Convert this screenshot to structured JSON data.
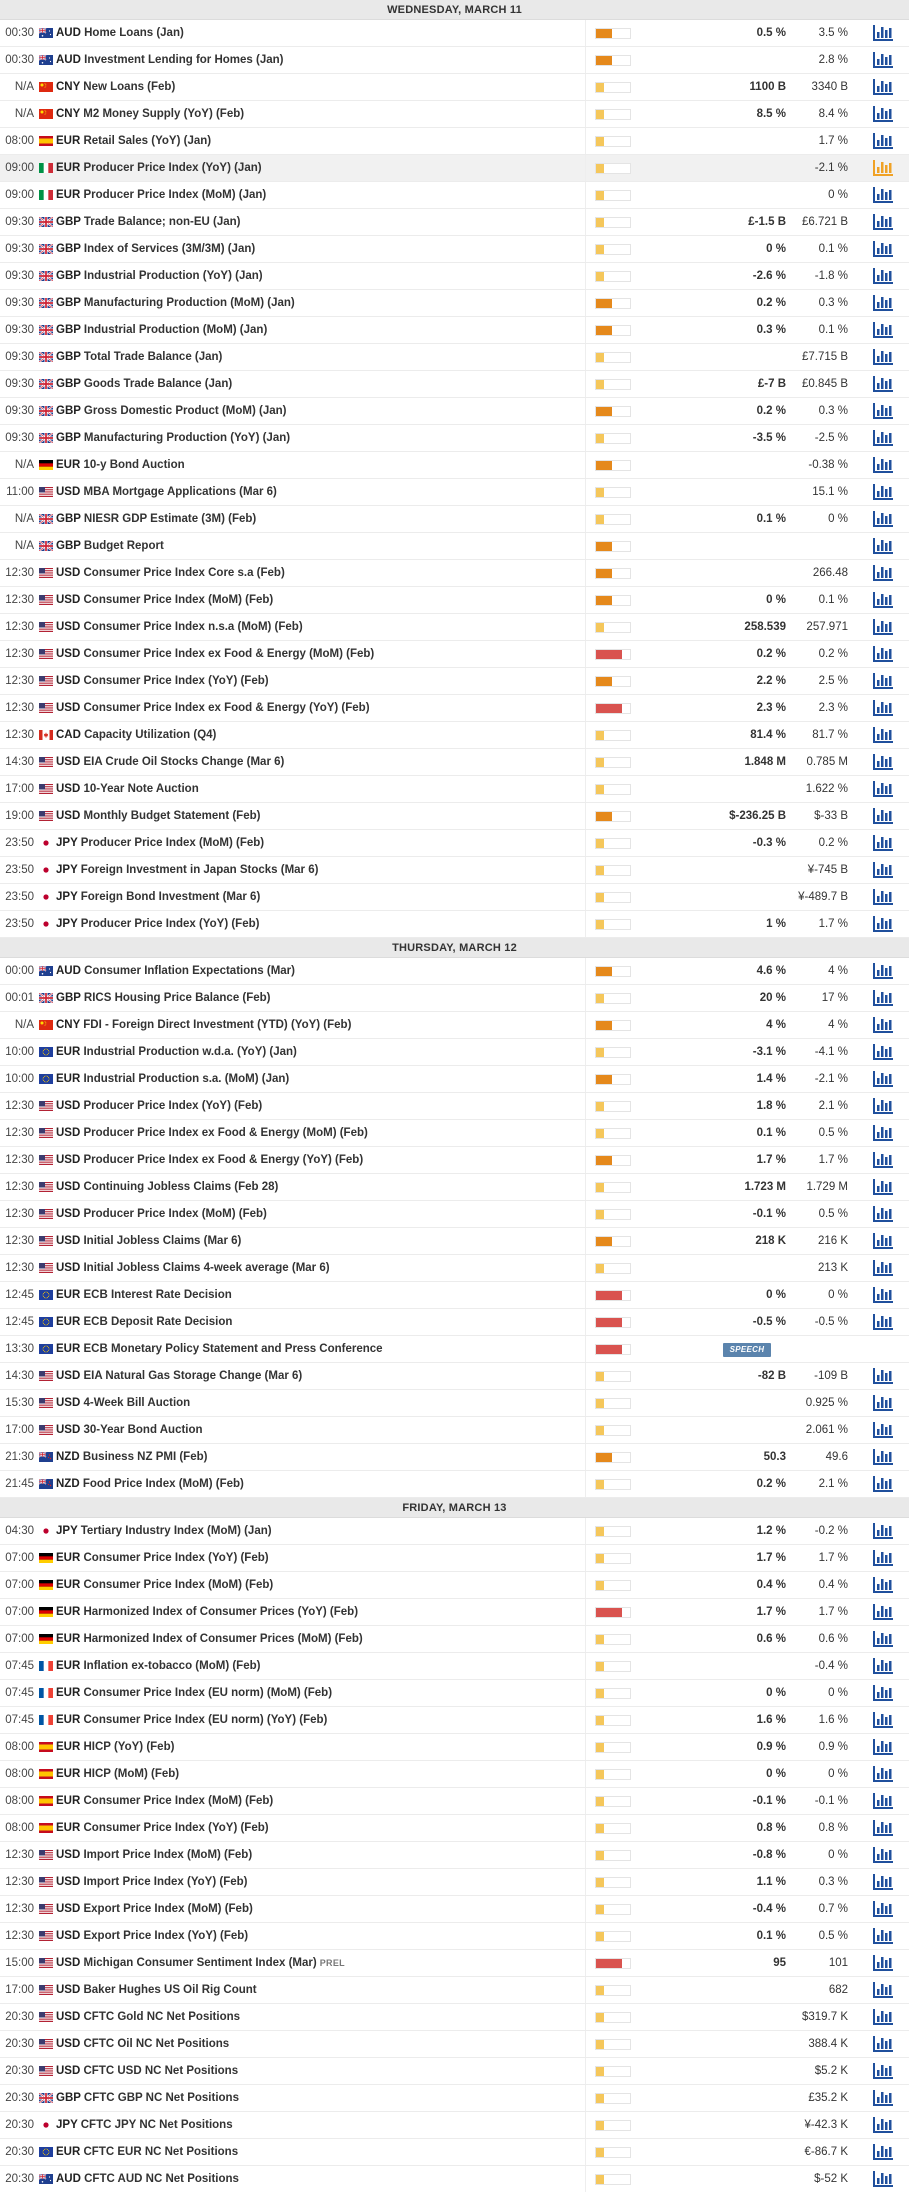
{
  "colors": {
    "importance_high": "#d9534f",
    "importance_medium": "#e5891c",
    "importance_low": "#f5c75b",
    "chart_icon": "#1f4f9c",
    "chart_icon_active": "#f0a226",
    "speech_badge": "#5b84ad"
  },
  "days": [
    {
      "title": "WEDNESDAY, MARCH 11",
      "events": [
        {
          "time": "00:30",
          "flag": "au",
          "currency": "AUD",
          "name": "Home Loans (Jan)",
          "importance": "medium",
          "actual": "0.5 %",
          "consensus": "3.5 %"
        },
        {
          "time": "00:30",
          "flag": "au",
          "currency": "AUD",
          "name": "Investment Lending for Homes (Jan)",
          "importance": "medium",
          "actual": "",
          "consensus": "2.8 %"
        },
        {
          "time": "N/A",
          "flag": "cn",
          "currency": "CNY",
          "name": "New Loans (Feb)",
          "importance": "low",
          "actual": "1100 B",
          "consensus": "3340 B"
        },
        {
          "time": "N/A",
          "flag": "cn",
          "currency": "CNY",
          "name": "M2 Money Supply (YoY) (Feb)",
          "importance": "low",
          "actual": "8.5 %",
          "consensus": "8.4 %"
        },
        {
          "time": "08:00",
          "flag": "es",
          "currency": "EUR",
          "name": "Retail Sales (YoY) (Jan)",
          "importance": "low",
          "actual": "",
          "consensus": "1.7 %"
        },
        {
          "time": "09:00",
          "flag": "it",
          "currency": "EUR",
          "name": "Producer Price Index (YoY) (Jan)",
          "importance": "low",
          "actual": "",
          "consensus": "-2.1 %",
          "highlight": true
        },
        {
          "time": "09:00",
          "flag": "it",
          "currency": "EUR",
          "name": "Producer Price Index (MoM) (Jan)",
          "importance": "low",
          "actual": "",
          "consensus": "0 %"
        },
        {
          "time": "09:30",
          "flag": "gb",
          "currency": "GBP",
          "name": "Trade Balance; non-EU (Jan)",
          "importance": "low",
          "actual": "£-1.5 B",
          "consensus": "£6.721 B"
        },
        {
          "time": "09:30",
          "flag": "gb",
          "currency": "GBP",
          "name": "Index of Services (3M/3M) (Jan)",
          "importance": "low",
          "actual": "0 %",
          "consensus": "0.1 %"
        },
        {
          "time": "09:30",
          "flag": "gb",
          "currency": "GBP",
          "name": "Industrial Production (YoY) (Jan)",
          "importance": "low",
          "actual": "-2.6 %",
          "consensus": "-1.8 %"
        },
        {
          "time": "09:30",
          "flag": "gb",
          "currency": "GBP",
          "name": "Manufacturing Production (MoM) (Jan)",
          "importance": "medium",
          "actual": "0.2 %",
          "consensus": "0.3 %"
        },
        {
          "time": "09:30",
          "flag": "gb",
          "currency": "GBP",
          "name": "Industrial Production (MoM) (Jan)",
          "importance": "medium",
          "actual": "0.3 %",
          "consensus": "0.1 %"
        },
        {
          "time": "09:30",
          "flag": "gb",
          "currency": "GBP",
          "name": "Total Trade Balance (Jan)",
          "importance": "low",
          "actual": "",
          "consensus": "£7.715 B"
        },
        {
          "time": "09:30",
          "flag": "gb",
          "currency": "GBP",
          "name": "Goods Trade Balance (Jan)",
          "importance": "low",
          "actual": "£-7 B",
          "consensus": "£0.845 B"
        },
        {
          "time": "09:30",
          "flag": "gb",
          "currency": "GBP",
          "name": "Gross Domestic Product (MoM) (Jan)",
          "importance": "medium",
          "actual": "0.2 %",
          "consensus": "0.3 %"
        },
        {
          "time": "09:30",
          "flag": "gb",
          "currency": "GBP",
          "name": "Manufacturing Production (YoY) (Jan)",
          "importance": "low",
          "actual": "-3.5 %",
          "consensus": "-2.5 %"
        },
        {
          "time": "N/A",
          "flag": "de",
          "currency": "EUR",
          "name": "10-y Bond Auction",
          "importance": "medium",
          "actual": "",
          "consensus": "-0.38 %"
        },
        {
          "time": "11:00",
          "flag": "us",
          "currency": "USD",
          "name": "MBA Mortgage Applications (Mar 6)",
          "importance": "low",
          "actual": "",
          "consensus": "15.1 %"
        },
        {
          "time": "N/A",
          "flag": "gb",
          "currency": "GBP",
          "name": "NIESR GDP Estimate (3M) (Feb)",
          "importance": "low",
          "actual": "0.1 %",
          "consensus": "0 %"
        },
        {
          "time": "N/A",
          "flag": "gb",
          "currency": "GBP",
          "name": "Budget Report",
          "importance": "medium",
          "actual": "",
          "consensus": ""
        },
        {
          "time": "12:30",
          "flag": "us",
          "currency": "USD",
          "name": "Consumer Price Index Core s.a (Feb)",
          "importance": "medium",
          "actual": "",
          "consensus": "266.48"
        },
        {
          "time": "12:30",
          "flag": "us",
          "currency": "USD",
          "name": "Consumer Price Index (MoM) (Feb)",
          "importance": "medium",
          "actual": "0 %",
          "consensus": "0.1 %"
        },
        {
          "time": "12:30",
          "flag": "us",
          "currency": "USD",
          "name": "Consumer Price Index n.s.a (MoM) (Feb)",
          "importance": "low",
          "actual": "258.539",
          "consensus": "257.971"
        },
        {
          "time": "12:30",
          "flag": "us",
          "currency": "USD",
          "name": "Consumer Price Index ex Food & Energy (MoM) (Feb)",
          "importance": "high",
          "actual": "0.2 %",
          "consensus": "0.2 %"
        },
        {
          "time": "12:30",
          "flag": "us",
          "currency": "USD",
          "name": "Consumer Price Index (YoY) (Feb)",
          "importance": "medium",
          "actual": "2.2 %",
          "consensus": "2.5 %"
        },
        {
          "time": "12:30",
          "flag": "us",
          "currency": "USD",
          "name": "Consumer Price Index ex Food & Energy (YoY) (Feb)",
          "importance": "high",
          "actual": "2.3 %",
          "consensus": "2.3 %"
        },
        {
          "time": "12:30",
          "flag": "ca",
          "currency": "CAD",
          "name": "Capacity Utilization (Q4)",
          "importance": "low",
          "actual": "81.4 %",
          "consensus": "81.7 %"
        },
        {
          "time": "14:30",
          "flag": "us",
          "currency": "USD",
          "name": "EIA Crude Oil Stocks Change (Mar 6)",
          "importance": "low",
          "actual": "1.848 M",
          "consensus": "0.785 M"
        },
        {
          "time": "17:00",
          "flag": "us",
          "currency": "USD",
          "name": "10-Year Note Auction",
          "importance": "low",
          "actual": "",
          "consensus": "1.622 %"
        },
        {
          "time": "19:00",
          "flag": "us",
          "currency": "USD",
          "name": "Monthly Budget Statement (Feb)",
          "importance": "medium",
          "actual": "$-236.25 B",
          "consensus": "$-33 B"
        },
        {
          "time": "23:50",
          "flag": "jp",
          "currency": "JPY",
          "name": "Producer Price Index (MoM) (Feb)",
          "importance": "low",
          "actual": "-0.3 %",
          "consensus": "0.2 %"
        },
        {
          "time": "23:50",
          "flag": "jp",
          "currency": "JPY",
          "name": "Foreign Investment in Japan Stocks (Mar 6)",
          "importance": "low",
          "actual": "",
          "consensus": "¥-745 B"
        },
        {
          "time": "23:50",
          "flag": "jp",
          "currency": "JPY",
          "name": "Foreign Bond Investment (Mar 6)",
          "importance": "low",
          "actual": "",
          "consensus": "¥-489.7 B"
        },
        {
          "time": "23:50",
          "flag": "jp",
          "currency": "JPY",
          "name": "Producer Price Index (YoY) (Feb)",
          "importance": "low",
          "actual": "1 %",
          "consensus": "1.7 %"
        }
      ]
    },
    {
      "title": "THURSDAY, MARCH 12",
      "events": [
        {
          "time": "00:00",
          "flag": "au",
          "currency": "AUD",
          "name": "Consumer Inflation Expectations (Mar)",
          "importance": "medium",
          "actual": "4.6 %",
          "consensus": "4 %"
        },
        {
          "time": "00:01",
          "flag": "gb",
          "currency": "GBP",
          "name": "RICS Housing Price Balance (Feb)",
          "importance": "low",
          "actual": "20 %",
          "consensus": "17 %"
        },
        {
          "time": "N/A",
          "flag": "cn",
          "currency": "CNY",
          "name": "FDI - Foreign Direct Investment (YTD) (YoY) (Feb)",
          "importance": "medium",
          "actual": "4 %",
          "consensus": "4 %"
        },
        {
          "time": "10:00",
          "flag": "eu",
          "currency": "EUR",
          "name": "Industrial Production w.d.a. (YoY) (Jan)",
          "importance": "low",
          "actual": "-3.1 %",
          "consensus": "-4.1 %"
        },
        {
          "time": "10:00",
          "flag": "eu",
          "currency": "EUR",
          "name": "Industrial Production s.a. (MoM) (Jan)",
          "importance": "medium",
          "actual": "1.4 %",
          "consensus": "-2.1 %"
        },
        {
          "time": "12:30",
          "flag": "us",
          "currency": "USD",
          "name": "Producer Price Index (YoY) (Feb)",
          "importance": "low",
          "actual": "1.8 %",
          "consensus": "2.1 %"
        },
        {
          "time": "12:30",
          "flag": "us",
          "currency": "USD",
          "name": "Producer Price Index ex Food & Energy (MoM) (Feb)",
          "importance": "low",
          "actual": "0.1 %",
          "consensus": "0.5 %"
        },
        {
          "time": "12:30",
          "flag": "us",
          "currency": "USD",
          "name": "Producer Price Index ex Food & Energy (YoY) (Feb)",
          "importance": "medium",
          "actual": "1.7 %",
          "consensus": "1.7 %"
        },
        {
          "time": "12:30",
          "flag": "us",
          "currency": "USD",
          "name": "Continuing Jobless Claims (Feb 28)",
          "importance": "low",
          "actual": "1.723 M",
          "consensus": "1.729 M"
        },
        {
          "time": "12:30",
          "flag": "us",
          "currency": "USD",
          "name": "Producer Price Index (MoM) (Feb)",
          "importance": "low",
          "actual": "-0.1 %",
          "consensus": "0.5 %"
        },
        {
          "time": "12:30",
          "flag": "us",
          "currency": "USD",
          "name": "Initial Jobless Claims (Mar 6)",
          "importance": "medium",
          "actual": "218 K",
          "consensus": "216 K"
        },
        {
          "time": "12:30",
          "flag": "us",
          "currency": "USD",
          "name": "Initial Jobless Claims 4-week average (Mar 6)",
          "importance": "low",
          "actual": "",
          "consensus": "213 K"
        },
        {
          "time": "12:45",
          "flag": "eu",
          "currency": "EUR",
          "name": "ECB Interest Rate Decision",
          "importance": "high",
          "actual": "0 %",
          "consensus": "0 %"
        },
        {
          "time": "12:45",
          "flag": "eu",
          "currency": "EUR",
          "name": "ECB Deposit Rate Decision",
          "importance": "high",
          "actual": "-0.5 %",
          "consensus": "-0.5 %"
        },
        {
          "time": "13:30",
          "flag": "eu",
          "currency": "EUR",
          "name": "ECB Monetary Policy Statement and Press Conference",
          "importance": "high",
          "actual": "",
          "consensus": "",
          "badge": "SPEECH",
          "no_chart": true
        },
        {
          "time": "14:30",
          "flag": "us",
          "currency": "USD",
          "name": "EIA Natural Gas Storage Change (Mar 6)",
          "importance": "low",
          "actual": "-82 B",
          "consensus": "-109 B"
        },
        {
          "time": "15:30",
          "flag": "us",
          "currency": "USD",
          "name": "4-Week Bill Auction",
          "importance": "low",
          "actual": "",
          "consensus": "0.925 %"
        },
        {
          "time": "17:00",
          "flag": "us",
          "currency": "USD",
          "name": "30-Year Bond Auction",
          "importance": "low",
          "actual": "",
          "consensus": "2.061 %"
        },
        {
          "time": "21:30",
          "flag": "nz",
          "currency": "NZD",
          "name": "Business NZ PMI (Feb)",
          "importance": "medium",
          "actual": "50.3",
          "consensus": "49.6"
        },
        {
          "time": "21:45",
          "flag": "nz",
          "currency": "NZD",
          "name": "Food Price Index (MoM) (Feb)",
          "importance": "low",
          "actual": "0.2 %",
          "consensus": "2.1 %"
        }
      ]
    },
    {
      "title": "FRIDAY, MARCH 13",
      "events": [
        {
          "time": "04:30",
          "flag": "jp",
          "currency": "JPY",
          "name": "Tertiary Industry Index (MoM) (Jan)",
          "importance": "low",
          "actual": "1.2 %",
          "consensus": "-0.2 %"
        },
        {
          "time": "07:00",
          "flag": "de",
          "currency": "EUR",
          "name": "Consumer Price Index (YoY) (Feb)",
          "importance": "low",
          "actual": "1.7 %",
          "consensus": "1.7 %"
        },
        {
          "time": "07:00",
          "flag": "de",
          "currency": "EUR",
          "name": "Consumer Price Index (MoM) (Feb)",
          "importance": "low",
          "actual": "0.4 %",
          "consensus": "0.4 %"
        },
        {
          "time": "07:00",
          "flag": "de",
          "currency": "EUR",
          "name": "Harmonized Index of Consumer Prices (YoY) (Feb)",
          "importance": "high",
          "actual": "1.7 %",
          "consensus": "1.7 %"
        },
        {
          "time": "07:00",
          "flag": "de",
          "currency": "EUR",
          "name": "Harmonized Index of Consumer Prices (MoM) (Feb)",
          "importance": "low",
          "actual": "0.6 %",
          "consensus": "0.6 %"
        },
        {
          "time": "07:45",
          "flag": "fr",
          "currency": "EUR",
          "name": "Inflation ex-tobacco (MoM) (Feb)",
          "importance": "low",
          "actual": "",
          "consensus": "-0.4 %"
        },
        {
          "time": "07:45",
          "flag": "fr",
          "currency": "EUR",
          "name": "Consumer Price Index (EU norm) (MoM) (Feb)",
          "importance": "low",
          "actual": "0 %",
          "consensus": "0 %"
        },
        {
          "time": "07:45",
          "flag": "fr",
          "currency": "EUR",
          "name": "Consumer Price Index (EU norm) (YoY) (Feb)",
          "importance": "low",
          "actual": "1.6 %",
          "consensus": "1.6 %"
        },
        {
          "time": "08:00",
          "flag": "es",
          "currency": "EUR",
          "name": "HICP (YoY) (Feb)",
          "importance": "low",
          "actual": "0.9 %",
          "consensus": "0.9 %"
        },
        {
          "time": "08:00",
          "flag": "es",
          "currency": "EUR",
          "name": "HICP (MoM) (Feb)",
          "importance": "low",
          "actual": "0 %",
          "consensus": "0 %"
        },
        {
          "time": "08:00",
          "flag": "es",
          "currency": "EUR",
          "name": "Consumer Price Index (MoM) (Feb)",
          "importance": "low",
          "actual": "-0.1 %",
          "consensus": "-0.1 %"
        },
        {
          "time": "08:00",
          "flag": "es",
          "currency": "EUR",
          "name": "Consumer Price Index (YoY) (Feb)",
          "importance": "low",
          "actual": "0.8 %",
          "consensus": "0.8 %"
        },
        {
          "time": "12:30",
          "flag": "us",
          "currency": "USD",
          "name": "Import Price Index (MoM) (Feb)",
          "importance": "low",
          "actual": "-0.8 %",
          "consensus": "0 %"
        },
        {
          "time": "12:30",
          "flag": "us",
          "currency": "USD",
          "name": "Import Price Index (YoY) (Feb)",
          "importance": "low",
          "actual": "1.1 %",
          "consensus": "0.3 %"
        },
        {
          "time": "12:30",
          "flag": "us",
          "currency": "USD",
          "name": "Export Price Index (MoM) (Feb)",
          "importance": "low",
          "actual": "-0.4 %",
          "consensus": "0.7 %"
        },
        {
          "time": "12:30",
          "flag": "us",
          "currency": "USD",
          "name": "Export Price Index (YoY) (Feb)",
          "importance": "low",
          "actual": "0.1 %",
          "consensus": "0.5 %"
        },
        {
          "time": "15:00",
          "flag": "us",
          "currency": "USD",
          "name": "Michigan Consumer Sentiment Index (Mar)",
          "tag": "PREL",
          "importance": "high",
          "actual": "95",
          "consensus": "101"
        },
        {
          "time": "17:00",
          "flag": "us",
          "currency": "USD",
          "name": "Baker Hughes US Oil Rig Count",
          "importance": "low",
          "actual": "",
          "consensus": "682"
        },
        {
          "time": "20:30",
          "flag": "us",
          "currency": "USD",
          "name": "CFTC Gold NC Net Positions",
          "importance": "low",
          "actual": "",
          "consensus": "$319.7 K"
        },
        {
          "time": "20:30",
          "flag": "us",
          "currency": "USD",
          "name": "CFTC Oil NC Net Positions",
          "importance": "low",
          "actual": "",
          "consensus": "388.4 K"
        },
        {
          "time": "20:30",
          "flag": "us",
          "currency": "USD",
          "name": "CFTC USD NC Net Positions",
          "importance": "low",
          "actual": "",
          "consensus": "$5.2 K"
        },
        {
          "time": "20:30",
          "flag": "gb",
          "currency": "GBP",
          "name": "CFTC GBP NC Net Positions",
          "importance": "low",
          "actual": "",
          "consensus": "£35.2 K"
        },
        {
          "time": "20:30",
          "flag": "jp",
          "currency": "JPY",
          "name": "CFTC JPY NC Net Positions",
          "importance": "low",
          "actual": "",
          "consensus": "¥-42.3 K"
        },
        {
          "time": "20:30",
          "flag": "eu",
          "currency": "EUR",
          "name": "CFTC EUR NC Net Positions",
          "importance": "low",
          "actual": "",
          "consensus": "€-86.7 K"
        },
        {
          "time": "20:30",
          "flag": "au",
          "currency": "AUD",
          "name": "CFTC AUD NC Net Positions",
          "importance": "low",
          "actual": "",
          "consensus": "$-52 K"
        }
      ]
    }
  ]
}
